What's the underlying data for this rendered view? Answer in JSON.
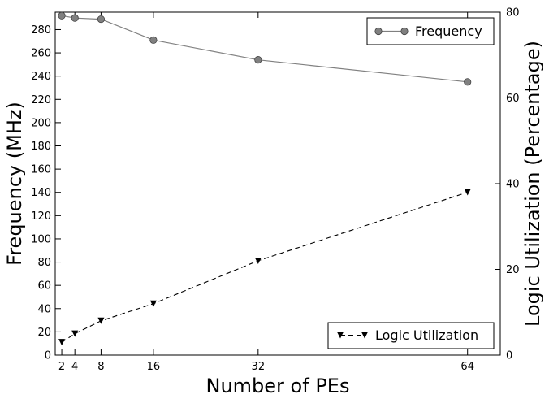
{
  "chart_data": {
    "type": "line",
    "xlabel": "Number of PEs",
    "ylabel": "Frequency (MHz)",
    "y2label": "Logic Utilization (Percentage)",
    "x": [
      2,
      4,
      8,
      16,
      32,
      64
    ],
    "xticks": [
      "2",
      "4",
      "8",
      "16",
      "32",
      "64"
    ],
    "xlim": [
      1,
      69
    ],
    "ylim": [
      0,
      295
    ],
    "yticks": [
      "0",
      "20",
      "40",
      "60",
      "80",
      "100",
      "120",
      "140",
      "160",
      "180",
      "200",
      "220",
      "240",
      "260",
      "280"
    ],
    "y2lim": [
      0,
      80
    ],
    "y2ticks": [
      "0",
      "20",
      "40",
      "60",
      "80"
    ],
    "grid": false,
    "series": [
      {
        "name": "Frequency",
        "axis": "left",
        "values": [
          292,
          290,
          289,
          271,
          254,
          235
        ],
        "color": "#808080",
        "marker": "circle",
        "line": "solid",
        "legend_position": "top-right"
      },
      {
        "name": "Logic Utilization",
        "axis": "right",
        "values": [
          3,
          5,
          8,
          12,
          22,
          38
        ],
        "color": "#000000",
        "marker": "triangle-down",
        "line": "dashed",
        "legend_position": "bottom-right"
      }
    ]
  }
}
